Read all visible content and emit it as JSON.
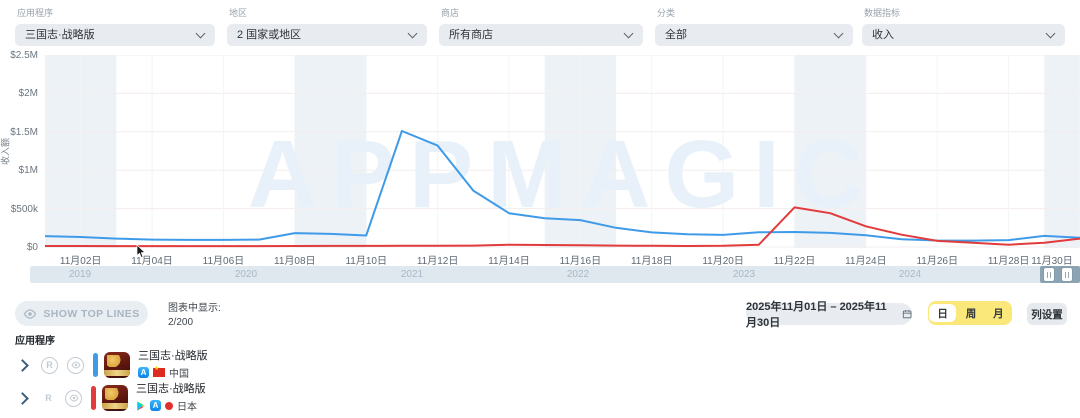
{
  "filters": [
    {
      "label": "应用程序",
      "value": "三国志·战略版"
    },
    {
      "label": "地区",
      "value": "2 国家或地区"
    },
    {
      "label": "商店",
      "value": "所有商店"
    },
    {
      "label": "分类",
      "value": "全部"
    },
    {
      "label": "数据指标",
      "value": "收入"
    }
  ],
  "chart_data": {
    "type": "line",
    "title": "",
    "xlabel": "",
    "ylabel": "收入额",
    "ylim": [
      0,
      2500000
    ],
    "y_ticks": [
      "$0",
      "$500k",
      "$1M",
      "$1.5M",
      "$2M",
      "$2.5M"
    ],
    "x_tick_labels": [
      "11月02日",
      "11月04日",
      "11月06日",
      "11月08日",
      "11月10日",
      "11月12日",
      "11月14日",
      "11月16日",
      "11月18日",
      "11月20日",
      "11月22日",
      "11月24日",
      "11月26日",
      "11月28日",
      "11月30日"
    ],
    "x_days": [
      1,
      2,
      3,
      4,
      5,
      6,
      7,
      8,
      9,
      10,
      11,
      12,
      13,
      14,
      15,
      16,
      17,
      18,
      19,
      20,
      21,
      22,
      23,
      24,
      25,
      26,
      27,
      28,
      29,
      30
    ],
    "series": [
      {
        "name": "三国志·战略版 (中国)",
        "color": "#3f9be8",
        "values": [
          142000,
          130000,
          110000,
          97000,
          93000,
          93000,
          97000,
          181000,
          170000,
          150000,
          1510000,
          1320000,
          735000,
          440000,
          375000,
          350000,
          250000,
          190000,
          165000,
          158000,
          192000,
          195000,
          183000,
          152000,
          100000,
          85000,
          83000,
          90000,
          145000,
          120000
        ]
      },
      {
        "name": "三国志·战略版 (日本)",
        "color": "#e23b3b",
        "values": [
          13000,
          13000,
          12000,
          12000,
          12000,
          12000,
          12000,
          13000,
          14000,
          14000,
          15000,
          15000,
          18000,
          30000,
          26000,
          22000,
          18000,
          15000,
          13000,
          15000,
          30000,
          516000,
          440000,
          270000,
          160000,
          80000,
          55000,
          30000,
          55000,
          110000
        ]
      }
    ],
    "weekend_saturdays": [
      1,
      8,
      15,
      22,
      29
    ],
    "weekend_band_color": "#edf2f7",
    "grid": true,
    "legend_position": "bottom-list",
    "watermark": "APPMAGIC"
  },
  "timeline": {
    "years": [
      "2019",
      "2020",
      "2021",
      "2022",
      "2023",
      "2024"
    ]
  },
  "controls": {
    "show_top_lines": "SHOW TOP LINES",
    "chart_showing_label": "图表中显示:",
    "chart_showing_value": "2/200",
    "date_range": "2025年11月01日 – 2025年11月30日",
    "granularity": [
      {
        "label": "日",
        "selected": true
      },
      {
        "label": "周",
        "selected": false
      },
      {
        "label": "月",
        "selected": false
      }
    ],
    "column_settings": "列设置"
  },
  "app_list": {
    "header": "应用程序",
    "rows": [
      {
        "title": "三国志·战略版",
        "country": "中国",
        "line_color": "#3f9be8",
        "stores": [
          "App Store"
        ],
        "badge": "R"
      },
      {
        "title": "三国志·战略版",
        "country": "日本",
        "line_color": "#e23b3b",
        "stores": [
          "Google Play",
          "App Store"
        ],
        "badge": "R"
      }
    ]
  },
  "colors": {
    "accent_blue": "#3f9be8",
    "accent_red": "#e23b3b",
    "selector_yellow": "#fbe87b",
    "timeline_bg": "#dfe8ef"
  }
}
